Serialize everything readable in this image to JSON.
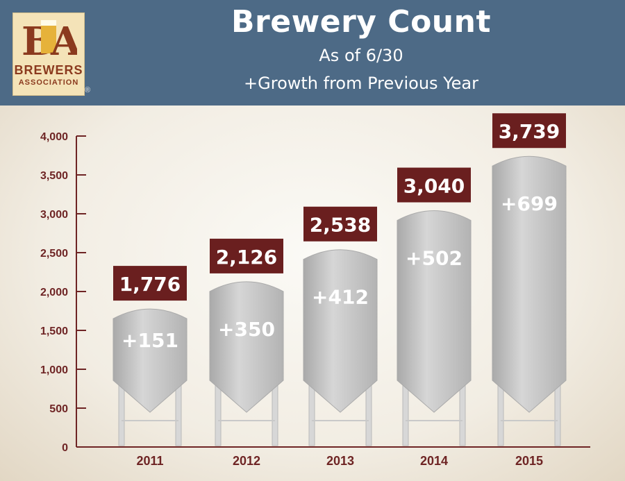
{
  "header": {
    "title": "Brewery Count",
    "subtitle": "As of 6/30",
    "note": "+Growth from Previous Year"
  },
  "logo": {
    "mark": "BA",
    "line1": "BREWERS",
    "line2": "ASSOCIATION",
    "reg": "®"
  },
  "colors": {
    "header_bg": "#4d6a86",
    "label_box": "#6a1f1f",
    "axis": "#6e2424",
    "tank": "#c4c4c4"
  },
  "chart_data": {
    "type": "bar",
    "title": "Brewery Count",
    "subtitle": "As of 6/30",
    "categories": [
      "2011",
      "2012",
      "2013",
      "2014",
      "2015"
    ],
    "values": [
      1776,
      2126,
      2538,
      3040,
      3739
    ],
    "value_labels": [
      "1,776",
      "2,126",
      "2,538",
      "3,040",
      "3,739"
    ],
    "growth": [
      151,
      350,
      412,
      502,
      699
    ],
    "growth_labels": [
      "+151",
      "+350",
      "+412",
      "+502",
      "+699"
    ],
    "ylim": [
      0,
      4000
    ],
    "yticks": [
      0,
      500,
      1000,
      1500,
      2000,
      2500,
      3000,
      3500,
      4000
    ],
    "ytick_labels": [
      "0",
      "500",
      "1,000",
      "1,500",
      "2,000",
      "2,500",
      "3,000",
      "3,500",
      "4,000"
    ],
    "grid": false,
    "legend": "none"
  }
}
